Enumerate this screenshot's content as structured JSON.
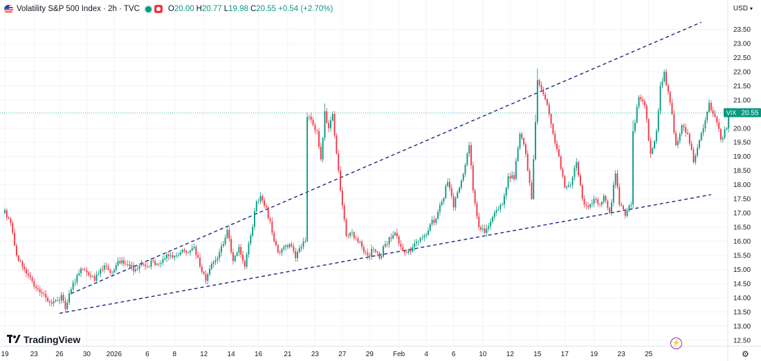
{
  "header": {
    "title": "Volatility S&P 500 Index · 2h · TVC",
    "ohlc": [
      {
        "key": "O",
        "value": "20.00"
      },
      {
        "key": "H",
        "value": "20.77"
      },
      {
        "key": "L",
        "value": "19.98"
      },
      {
        "key": "C",
        "value": "20.55"
      }
    ],
    "change": "+0.54 (+2.70%)",
    "currency": "USD"
  },
  "price_tag": {
    "symbol": "VIX",
    "value": "20.55"
  },
  "brand": "TradingView",
  "colors": {
    "up": "#089981",
    "down": "#f23645",
    "trendline": "#1a237e",
    "grid": "#f0f3fa",
    "axis_text": "#131722"
  },
  "chart_data": {
    "type": "candlestick",
    "symbol": "VIX",
    "interval": "2h",
    "y_ticks": [
      "23.50",
      "23.00",
      "22.50",
      "22.00",
      "21.50",
      "21.00",
      "20.50",
      "20.00",
      "19.50",
      "19.00",
      "18.50",
      "18.00",
      "17.50",
      "17.00",
      "16.50",
      "16.00",
      "15.50",
      "15.00",
      "14.50",
      "14.00",
      "13.50",
      "13.00",
      "12.50"
    ],
    "x_ticks": [
      "19",
      "23",
      "26",
      "30",
      "2026",
      "6",
      "8",
      "12",
      "14",
      "16",
      "21",
      "23",
      "27",
      "29",
      "Feb",
      "4",
      "6",
      "10",
      "12",
      "15",
      "17",
      "19",
      "23",
      "25"
    ],
    "x_tick_bars": [
      0,
      15,
      28,
      42,
      56,
      73,
      87,
      102,
      116,
      130,
      145,
      159,
      173,
      187,
      202,
      216,
      230,
      245,
      259,
      273,
      287,
      302,
      316,
      330
    ],
    "ylim": [
      12.3,
      24.0
    ],
    "last_price": 20.55,
    "trendlines": [
      {
        "name": "upper",
        "points": [
          [
            34,
            14.15
          ],
          [
            357,
            23.75
          ]
        ]
      },
      {
        "name": "lower",
        "points": [
          [
            28,
            13.45
          ],
          [
            362,
            17.65
          ]
        ]
      }
    ],
    "anchors": [
      [
        0,
        17.1
      ],
      [
        2,
        16.8
      ],
      [
        4,
        16.3
      ],
      [
        6,
        15.5
      ],
      [
        9,
        15.1
      ],
      [
        12,
        14.8
      ],
      [
        15,
        14.4
      ],
      [
        18,
        14.2
      ],
      [
        21,
        14.0
      ],
      [
        24,
        13.8
      ],
      [
        27,
        13.9
      ],
      [
        29,
        14.1
      ],
      [
        31,
        13.6
      ],
      [
        34,
        14.3
      ],
      [
        37,
        14.8
      ],
      [
        40,
        15.0
      ],
      [
        43,
        14.8
      ],
      [
        46,
        14.6
      ],
      [
        49,
        15.0
      ],
      [
        52,
        15.1
      ],
      [
        55,
        14.9
      ],
      [
        58,
        15.3
      ],
      [
        61,
        15.2
      ],
      [
        64,
        15.1
      ],
      [
        67,
        15.0
      ],
      [
        70,
        15.2
      ],
      [
        73,
        15.1
      ],
      [
        76,
        15.3
      ],
      [
        79,
        15.2
      ],
      [
        82,
        15.4
      ],
      [
        85,
        15.5
      ],
      [
        88,
        15.5
      ],
      [
        91,
        15.7
      ],
      [
        94,
        15.6
      ],
      [
        97,
        15.8
      ],
      [
        100,
        15.1
      ],
      [
        103,
        14.6
      ],
      [
        106,
        15.2
      ],
      [
        109,
        15.4
      ],
      [
        112,
        15.9
      ],
      [
        114,
        16.4
      ],
      [
        117,
        15.3
      ],
      [
        120,
        15.8
      ],
      [
        123,
        15.1
      ],
      [
        126,
        16.2
      ],
      [
        129,
        17.4
      ],
      [
        131,
        17.6
      ],
      [
        134,
        17.2
      ],
      [
        137,
        16.3
      ],
      [
        140,
        15.6
      ],
      [
        143,
        15.8
      ],
      [
        146,
        15.9
      ],
      [
        149,
        15.4
      ],
      [
        152,
        15.8
      ],
      [
        154,
        16.0
      ],
      [
        155,
        20.4
      ],
      [
        157,
        20.3
      ],
      [
        160,
        19.9
      ],
      [
        162,
        18.9
      ],
      [
        164,
        20.6
      ],
      [
        166,
        20.0
      ],
      [
        168,
        20.5
      ],
      [
        170,
        19.1
      ],
      [
        172,
        17.8
      ],
      [
        175,
        16.2
      ],
      [
        177,
        16.3
      ],
      [
        180,
        16.1
      ],
      [
        183,
        15.8
      ],
      [
        186,
        15.5
      ],
      [
        189,
        15.7
      ],
      [
        192,
        15.4
      ],
      [
        195,
        15.9
      ],
      [
        198,
        16.1
      ],
      [
        200,
        16.3
      ],
      [
        203,
        15.8
      ],
      [
        206,
        15.6
      ],
      [
        209,
        15.8
      ],
      [
        212,
        16.0
      ],
      [
        215,
        16.2
      ],
      [
        218,
        16.6
      ],
      [
        221,
        16.8
      ],
      [
        224,
        17.4
      ],
      [
        227,
        18.1
      ],
      [
        230,
        17.2
      ],
      [
        233,
        17.9
      ],
      [
        236,
        18.7
      ],
      [
        238,
        19.4
      ],
      [
        240,
        17.8
      ],
      [
        243,
        16.5
      ],
      [
        246,
        16.3
      ],
      [
        249,
        16.7
      ],
      [
        252,
        17.1
      ],
      [
        255,
        17.3
      ],
      [
        258,
        18.3
      ],
      [
        261,
        18.2
      ],
      [
        264,
        19.8
      ],
      [
        267,
        19.1
      ],
      [
        270,
        17.5
      ],
      [
        271,
        18.9
      ],
      [
        273,
        21.7
      ],
      [
        276,
        21.2
      ],
      [
        279,
        20.5
      ],
      [
        281,
        19.8
      ],
      [
        284,
        19.0
      ],
      [
        287,
        17.9
      ],
      [
        290,
        18.0
      ],
      [
        293,
        18.8
      ],
      [
        296,
        17.5
      ],
      [
        299,
        17.2
      ],
      [
        302,
        17.5
      ],
      [
        305,
        17.3
      ],
      [
        307,
        17.6
      ],
      [
        310,
        17.0
      ],
      [
        313,
        18.4
      ],
      [
        315,
        17.3
      ],
      [
        318,
        16.9
      ],
      [
        321,
        17.3
      ],
      [
        322,
        19.9
      ],
      [
        325,
        21.1
      ],
      [
        328,
        20.8
      ],
      [
        331,
        19.1
      ],
      [
        334,
        19.9
      ],
      [
        336,
        21.5
      ],
      [
        338,
        22.0
      ],
      [
        341,
        20.9
      ],
      [
        344,
        19.4
      ],
      [
        347,
        20.1
      ],
      [
        350,
        19.8
      ],
      [
        353,
        18.8
      ],
      [
        355,
        19.3
      ],
      [
        358,
        20.0
      ],
      [
        361,
        20.9
      ],
      [
        364,
        20.4
      ],
      [
        367,
        19.6
      ],
      [
        370,
        20.0
      ],
      [
        371,
        20.55
      ]
    ]
  }
}
